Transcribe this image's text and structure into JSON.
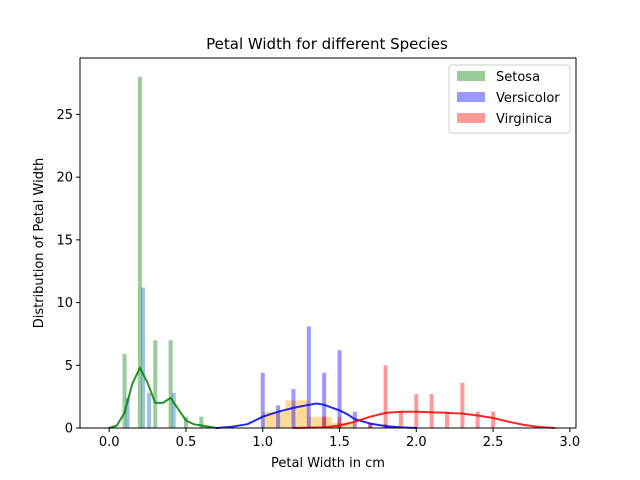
{
  "chart_data": {
    "type": "bar",
    "subtype": "histogram-with-kde",
    "title": "Petal Width for different Species",
    "xlabel": "Petal Width in cm",
    "ylabel": "Distribution of Petal Width",
    "xlim": [
      -0.19,
      3.04
    ],
    "ylim": [
      0,
      29.5
    ],
    "xticks": [
      0.0,
      0.5,
      1.0,
      1.5,
      2.0,
      2.5,
      3.0
    ],
    "xtick_labels": [
      "0.0",
      "0.5",
      "1.0",
      "1.5",
      "2.0",
      "2.5",
      "3.0"
    ],
    "yticks": [
      0,
      5,
      10,
      15,
      20,
      25
    ],
    "ytick_labels": [
      "0",
      "5",
      "10",
      "15",
      "20",
      "25"
    ],
    "grid": false,
    "legend_position": "top-right",
    "series": [
      {
        "name": "Setosa",
        "color": "#008000",
        "bar_opacity": 0.4,
        "bins": [
          {
            "x": 0.1,
            "y": 5.9
          },
          {
            "x": 0.2,
            "y": 28.0
          },
          {
            "x": 0.3,
            "y": 7.0
          },
          {
            "x": 0.4,
            "y": 7.0
          },
          {
            "x": 0.5,
            "y": 0.9
          },
          {
            "x": 0.6,
            "y": 0.9
          }
        ],
        "hist2": [
          {
            "x": 0.12,
            "y": 2.4
          },
          {
            "x": 0.22,
            "y": 11.2
          },
          {
            "x": 0.26,
            "y": 2.8
          },
          {
            "x": 0.42,
            "y": 2.8
          }
        ],
        "kde": [
          [
            0.0,
            0.0
          ],
          [
            0.05,
            0.2
          ],
          [
            0.1,
            1.2
          ],
          [
            0.15,
            3.5
          ],
          [
            0.2,
            4.8
          ],
          [
            0.25,
            3.6
          ],
          [
            0.3,
            2.0
          ],
          [
            0.35,
            2.0
          ],
          [
            0.4,
            2.4
          ],
          [
            0.45,
            1.5
          ],
          [
            0.5,
            0.6
          ],
          [
            0.55,
            0.3
          ],
          [
            0.6,
            0.2
          ],
          [
            0.65,
            0.1
          ],
          [
            0.7,
            0.0
          ]
        ]
      },
      {
        "name": "Versicolor",
        "color": "#0000FF",
        "bar_opacity": 0.4,
        "bins": [
          {
            "x": 1.0,
            "y": 4.4
          },
          {
            "x": 1.1,
            "y": 1.8
          },
          {
            "x": 1.2,
            "y": 3.1
          },
          {
            "x": 1.3,
            "y": 8.1
          },
          {
            "x": 1.4,
            "y": 4.4
          },
          {
            "x": 1.5,
            "y": 6.2
          },
          {
            "x": 1.6,
            "y": 1.3
          },
          {
            "x": 1.7,
            "y": 0.3
          },
          {
            "x": 1.8,
            "y": 0.3
          }
        ],
        "kde": [
          [
            0.7,
            0.0
          ],
          [
            0.8,
            0.1
          ],
          [
            0.9,
            0.3
          ],
          [
            1.0,
            0.9
          ],
          [
            1.1,
            1.3
          ],
          [
            1.2,
            1.6
          ],
          [
            1.3,
            1.85
          ],
          [
            1.35,
            1.95
          ],
          [
            1.4,
            1.85
          ],
          [
            1.5,
            1.4
          ],
          [
            1.55,
            1.1
          ],
          [
            1.6,
            0.7
          ],
          [
            1.7,
            0.35
          ],
          [
            1.8,
            0.15
          ],
          [
            1.9,
            0.05
          ],
          [
            2.0,
            0.0
          ]
        ]
      },
      {
        "name": "Virginica",
        "color": "#FF0000",
        "bar_opacity": 0.4,
        "bins": [
          {
            "x": 1.4,
            "y": 0.9
          },
          {
            "x": 1.5,
            "y": 0.9
          },
          {
            "x": 1.7,
            "y": 0.4
          },
          {
            "x": 1.8,
            "y": 5.0
          },
          {
            "x": 1.9,
            "y": 1.3
          },
          {
            "x": 2.0,
            "y": 2.7
          },
          {
            "x": 2.1,
            "y": 2.7
          },
          {
            "x": 2.2,
            "y": 1.3
          },
          {
            "x": 2.3,
            "y": 3.6
          },
          {
            "x": 2.4,
            "y": 1.3
          },
          {
            "x": 2.5,
            "y": 1.3
          }
        ],
        "hist_wide": [
          {
            "x0": 1.0,
            "x1": 1.15,
            "y": 1.3
          },
          {
            "x0": 1.15,
            "x1": 1.3,
            "y": 2.2
          },
          {
            "x0": 1.3,
            "x1": 1.45,
            "y": 0.9
          },
          {
            "x0": 1.45,
            "x1": 1.6,
            "y": 0.4
          }
        ],
        "kde": [
          [
            1.2,
            0.0
          ],
          [
            1.4,
            0.05
          ],
          [
            1.5,
            0.2
          ],
          [
            1.6,
            0.5
          ],
          [
            1.7,
            0.9
          ],
          [
            1.8,
            1.2
          ],
          [
            1.9,
            1.3
          ],
          [
            2.0,
            1.3
          ],
          [
            2.1,
            1.25
          ],
          [
            2.2,
            1.2
          ],
          [
            2.3,
            1.15
          ],
          [
            2.4,
            1.0
          ],
          [
            2.5,
            0.8
          ],
          [
            2.6,
            0.5
          ],
          [
            2.7,
            0.25
          ],
          [
            2.8,
            0.08
          ],
          [
            2.9,
            0.0
          ]
        ]
      }
    ]
  }
}
